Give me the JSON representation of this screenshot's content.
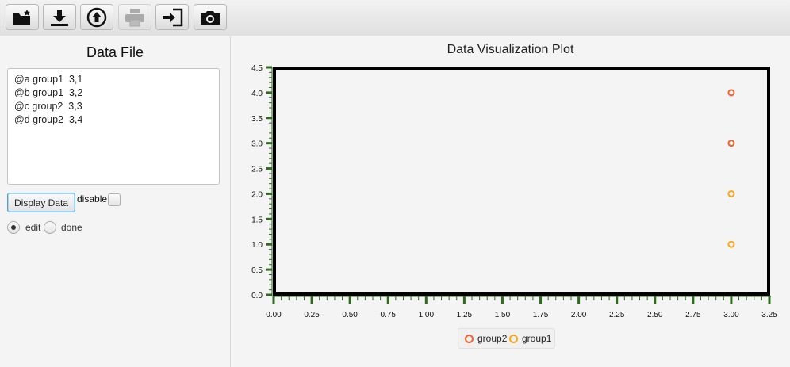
{
  "toolbar": {
    "buttons": [
      {
        "name": "new-folder",
        "icon": "new-folder-icon"
      },
      {
        "name": "download",
        "icon": "download-icon"
      },
      {
        "name": "upload",
        "icon": "upload-icon"
      },
      {
        "name": "print",
        "icon": "print-icon",
        "disabled": true
      },
      {
        "name": "sign-in",
        "icon": "sign-in-icon"
      },
      {
        "name": "camera",
        "icon": "camera-icon"
      }
    ]
  },
  "left": {
    "title": "Data File",
    "lines": [
      "@a group1  3,1",
      "@b group1  3,2",
      "@c group2  3,3",
      "@d group2  3,4"
    ],
    "display_button": "Display Data",
    "disable_label": "disable",
    "disable_checked": false,
    "radio": [
      {
        "label": "edit",
        "selected": true
      },
      {
        "label": "done",
        "selected": false
      }
    ]
  },
  "plot": {
    "title": "Data Visualization Plot"
  },
  "chart_data": {
    "type": "scatter",
    "title": "Data Visualization Plot",
    "xlabel": "",
    "ylabel": "",
    "xlim": [
      0,
      3.25
    ],
    "ylim": [
      0,
      4.5
    ],
    "x_ticks": [
      "0.00",
      "0.25",
      "0.50",
      "0.75",
      "1.00",
      "1.25",
      "1.50",
      "1.75",
      "2.00",
      "2.25",
      "2.50",
      "2.75",
      "3.00",
      "3.25"
    ],
    "y_ticks": [
      "0.0",
      "0.5",
      "1.0",
      "1.5",
      "2.0",
      "2.5",
      "3.0",
      "3.5",
      "4.0",
      "4.5"
    ],
    "legend_position": "bottom",
    "series": [
      {
        "name": "group2",
        "color": "#f3622d",
        "points": [
          [
            3,
            3
          ],
          [
            3,
            4
          ]
        ]
      },
      {
        "name": "group1",
        "color": "#fba71b",
        "points": [
          [
            3,
            1
          ],
          [
            3,
            2
          ]
        ]
      }
    ]
  }
}
